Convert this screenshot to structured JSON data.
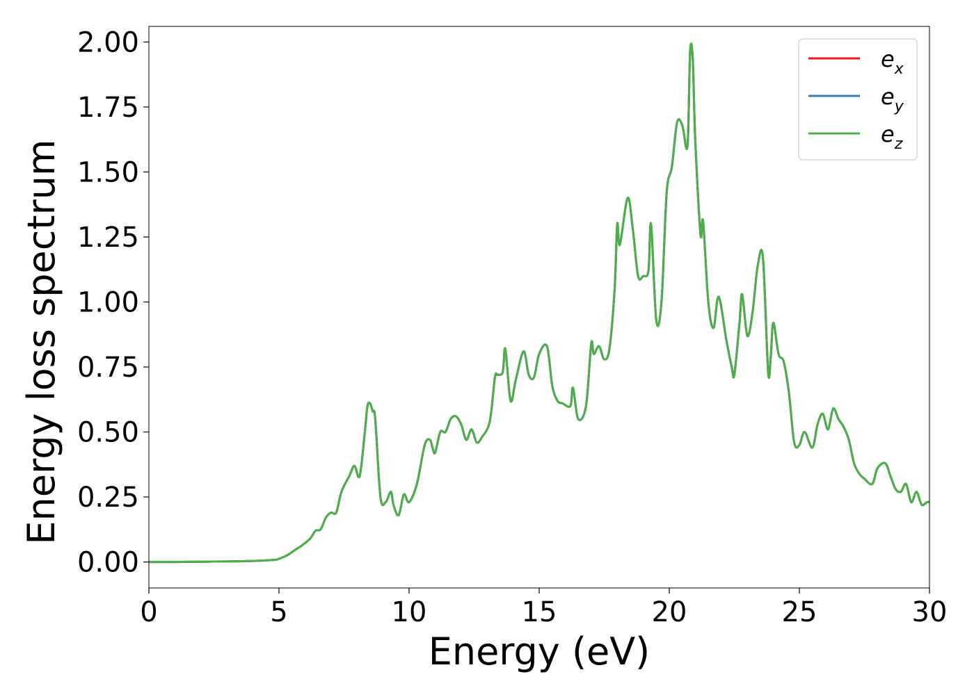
{
  "chart_data": {
    "type": "line",
    "xlabel": "Energy (eV)",
    "ylabel": "Energy loss spectrum",
    "xlim": [
      0,
      30
    ],
    "ylim": [
      -0.1,
      2.06
    ],
    "xticks": [
      0,
      5,
      10,
      15,
      20,
      25,
      30
    ],
    "xtick_labels": [
      "0",
      "5",
      "10",
      "15",
      "20",
      "25",
      "30"
    ],
    "yticks": [
      0,
      0.25,
      0.5,
      0.75,
      1.0,
      1.25,
      1.5,
      1.75,
      2.0
    ],
    "ytick_labels": [
      "0.00",
      "0.25",
      "0.50",
      "0.75",
      "1.00",
      "1.25",
      "1.50",
      "1.75",
      "2.00"
    ],
    "grid": false,
    "legend_position": "top-right",
    "x": [
      0,
      1,
      2,
      3,
      4,
      4.8,
      5.0,
      5.3,
      5.6,
      5.9,
      6.2,
      6.4,
      6.6,
      6.8,
      7.0,
      7.2,
      7.4,
      7.7,
      7.9,
      8.1,
      8.3,
      8.4,
      8.5,
      8.6,
      8.7,
      8.9,
      9.1,
      9.3,
      9.4,
      9.6,
      9.8,
      10.0,
      10.3,
      10.6,
      10.8,
      10.9,
      11.0,
      11.2,
      11.4,
      11.6,
      11.8,
      12.0,
      12.2,
      12.4,
      12.6,
      12.8,
      13.1,
      13.3,
      13.4,
      13.6,
      13.7,
      13.9,
      14.1,
      14.4,
      14.6,
      14.8,
      15.0,
      15.3,
      15.5,
      15.7,
      15.9,
      16.2,
      16.3,
      16.5,
      16.8,
      17.0,
      17.1,
      17.3,
      17.5,
      17.7,
      17.9,
      18.0,
      18.1,
      18.4,
      18.6,
      18.8,
      19.0,
      19.2,
      19.3,
      19.5,
      19.7,
      19.9,
      20.1,
      20.3,
      20.5,
      20.7,
      20.8,
      20.9,
      21.0,
      21.2,
      21.3,
      21.5,
      21.7,
      21.9,
      22.2,
      22.4,
      22.5,
      22.7,
      22.8,
      23.0,
      23.2,
      23.4,
      23.6,
      23.8,
      23.9,
      24.0,
      24.2,
      24.4,
      24.6,
      24.8,
      25.0,
      25.2,
      25.5,
      25.7,
      25.9,
      26.1,
      26.3,
      26.5,
      26.7,
      26.9,
      27.1,
      27.3,
      27.5,
      27.8,
      28.0,
      28.3,
      28.5,
      28.7,
      28.9,
      29.1,
      29.3,
      29.5,
      29.7,
      29.9,
      30.0
    ],
    "series": [
      {
        "name": "e_x",
        "color": "#e41a1c",
        "values": [
          0.0,
          0.0,
          0.001,
          0.002,
          0.004,
          0.008,
          0.012,
          0.025,
          0.045,
          0.065,
          0.09,
          0.12,
          0.125,
          0.17,
          0.19,
          0.19,
          0.27,
          0.33,
          0.37,
          0.33,
          0.5,
          0.6,
          0.61,
          0.58,
          0.55,
          0.25,
          0.23,
          0.27,
          0.22,
          0.18,
          0.26,
          0.23,
          0.3,
          0.45,
          0.47,
          0.44,
          0.42,
          0.5,
          0.5,
          0.55,
          0.56,
          0.53,
          0.47,
          0.51,
          0.46,
          0.48,
          0.54,
          0.71,
          0.72,
          0.73,
          0.82,
          0.62,
          0.7,
          0.81,
          0.72,
          0.71,
          0.8,
          0.83,
          0.68,
          0.62,
          0.61,
          0.6,
          0.67,
          0.55,
          0.6,
          0.84,
          0.8,
          0.83,
          0.78,
          0.82,
          1.05,
          1.3,
          1.22,
          1.4,
          1.28,
          1.1,
          1.1,
          1.12,
          1.3,
          0.93,
          1.0,
          1.42,
          1.52,
          1.69,
          1.68,
          1.6,
          1.96,
          1.94,
          1.62,
          1.26,
          1.31,
          1.0,
          0.9,
          1.02,
          0.85,
          0.75,
          0.72,
          0.92,
          1.03,
          0.87,
          0.96,
          1.14,
          1.17,
          0.73,
          0.79,
          0.92,
          0.8,
          0.77,
          0.65,
          0.46,
          0.45,
          0.5,
          0.44,
          0.53,
          0.57,
          0.51,
          0.59,
          0.55,
          0.52,
          0.47,
          0.38,
          0.34,
          0.32,
          0.3,
          0.36,
          0.38,
          0.33,
          0.28,
          0.27,
          0.3,
          0.23,
          0.27,
          0.22,
          0.23,
          0.23
        ]
      },
      {
        "name": "e_y",
        "color": "#377eb8",
        "values": [
          0.0,
          0.0,
          0.001,
          0.002,
          0.004,
          0.008,
          0.012,
          0.025,
          0.045,
          0.065,
          0.09,
          0.12,
          0.125,
          0.17,
          0.19,
          0.19,
          0.27,
          0.33,
          0.37,
          0.33,
          0.5,
          0.6,
          0.61,
          0.58,
          0.55,
          0.25,
          0.23,
          0.27,
          0.22,
          0.18,
          0.26,
          0.23,
          0.3,
          0.45,
          0.47,
          0.44,
          0.42,
          0.5,
          0.5,
          0.55,
          0.56,
          0.53,
          0.47,
          0.51,
          0.46,
          0.48,
          0.54,
          0.71,
          0.72,
          0.73,
          0.82,
          0.62,
          0.7,
          0.81,
          0.72,
          0.71,
          0.8,
          0.83,
          0.68,
          0.62,
          0.61,
          0.6,
          0.67,
          0.55,
          0.6,
          0.84,
          0.8,
          0.83,
          0.78,
          0.82,
          1.05,
          1.3,
          1.22,
          1.4,
          1.28,
          1.1,
          1.1,
          1.12,
          1.3,
          0.93,
          1.0,
          1.42,
          1.52,
          1.69,
          1.68,
          1.6,
          1.96,
          1.94,
          1.62,
          1.26,
          1.31,
          1.0,
          0.9,
          1.02,
          0.85,
          0.75,
          0.72,
          0.92,
          1.03,
          0.87,
          0.96,
          1.14,
          1.17,
          0.73,
          0.79,
          0.92,
          0.8,
          0.77,
          0.65,
          0.46,
          0.45,
          0.5,
          0.44,
          0.53,
          0.57,
          0.51,
          0.59,
          0.55,
          0.52,
          0.47,
          0.38,
          0.34,
          0.32,
          0.3,
          0.36,
          0.38,
          0.33,
          0.28,
          0.27,
          0.3,
          0.23,
          0.27,
          0.22,
          0.23,
          0.23
        ]
      },
      {
        "name": "e_z",
        "color": "#4daf4a",
        "values": [
          0.0,
          0.0,
          0.001,
          0.002,
          0.004,
          0.008,
          0.012,
          0.025,
          0.045,
          0.065,
          0.09,
          0.12,
          0.125,
          0.17,
          0.19,
          0.19,
          0.27,
          0.33,
          0.37,
          0.33,
          0.5,
          0.6,
          0.61,
          0.58,
          0.55,
          0.25,
          0.23,
          0.27,
          0.22,
          0.18,
          0.26,
          0.23,
          0.3,
          0.45,
          0.47,
          0.44,
          0.42,
          0.5,
          0.5,
          0.55,
          0.56,
          0.53,
          0.47,
          0.51,
          0.46,
          0.48,
          0.54,
          0.71,
          0.72,
          0.73,
          0.82,
          0.62,
          0.7,
          0.81,
          0.72,
          0.71,
          0.8,
          0.83,
          0.68,
          0.62,
          0.61,
          0.6,
          0.67,
          0.55,
          0.6,
          0.84,
          0.8,
          0.83,
          0.78,
          0.82,
          1.05,
          1.3,
          1.22,
          1.4,
          1.28,
          1.1,
          1.1,
          1.12,
          1.3,
          0.93,
          1.0,
          1.42,
          1.52,
          1.69,
          1.68,
          1.6,
          1.96,
          1.94,
          1.62,
          1.26,
          1.31,
          1.0,
          0.9,
          1.02,
          0.85,
          0.75,
          0.72,
          0.92,
          1.03,
          0.87,
          0.96,
          1.14,
          1.17,
          0.73,
          0.79,
          0.92,
          0.8,
          0.77,
          0.65,
          0.46,
          0.45,
          0.5,
          0.44,
          0.53,
          0.57,
          0.51,
          0.59,
          0.55,
          0.52,
          0.47,
          0.38,
          0.34,
          0.32,
          0.3,
          0.36,
          0.38,
          0.33,
          0.28,
          0.27,
          0.3,
          0.23,
          0.27,
          0.22,
          0.23,
          0.23
        ]
      }
    ],
    "legend": [
      {
        "base": "e",
        "sub": "x",
        "color": "#e41a1c"
      },
      {
        "base": "e",
        "sub": "y",
        "color": "#377eb8"
      },
      {
        "base": "e",
        "sub": "z",
        "color": "#4daf4a"
      }
    ]
  }
}
